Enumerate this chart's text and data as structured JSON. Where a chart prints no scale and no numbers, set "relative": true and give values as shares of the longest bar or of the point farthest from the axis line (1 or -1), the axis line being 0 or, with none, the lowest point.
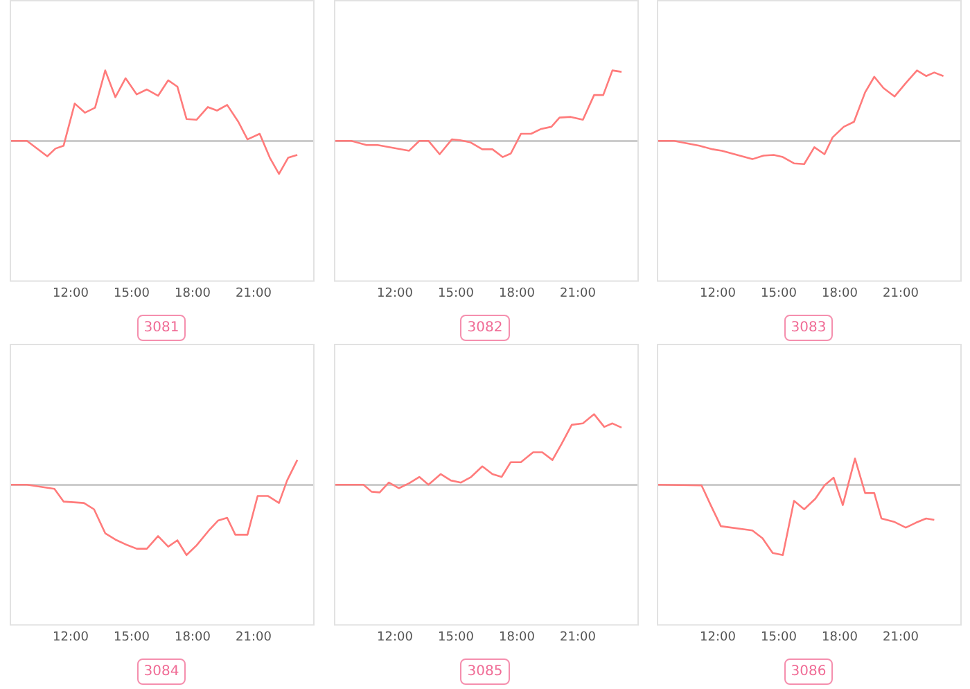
{
  "chart_data": [
    {
      "type": "line",
      "title": "3081",
      "relative": true,
      "color": "#ff7b7b",
      "xlim": [
        9,
        24
      ],
      "xticks": [
        {
          "value": 12,
          "label": "12:00"
        },
        {
          "value": 15,
          "label": "15:00"
        },
        {
          "value": 18,
          "label": "18:00"
        },
        {
          "value": 21,
          "label": "21:00"
        }
      ],
      "x": [
        9,
        9.85,
        10.85,
        11.25,
        11.65,
        12.2,
        12.7,
        13.2,
        13.7,
        14.2,
        14.7,
        15.25,
        15.75,
        16.3,
        16.8,
        17.25,
        17.7,
        18.2,
        18.75,
        19.2,
        19.7,
        20.25,
        20.7,
        21.3,
        21.8,
        22.25,
        22.7,
        23.15
      ],
      "values": [
        0,
        0,
        -0.22,
        -0.11,
        -0.07,
        0.53,
        0.4,
        0.47,
        1,
        0.62,
        0.89,
        0.66,
        0.73,
        0.64,
        0.86,
        0.77,
        0.31,
        0.3,
        0.48,
        0.43,
        0.51,
        0.27,
        0.02,
        0.1,
        -0.24,
        -0.47,
        -0.24,
        -0.2
      ]
    },
    {
      "type": "line",
      "title": "3082",
      "relative": true,
      "color": "#ff7b7b",
      "xlim": [
        9,
        24
      ],
      "xticks": [
        {
          "value": 12,
          "label": "12:00"
        },
        {
          "value": 15,
          "label": "15:00"
        },
        {
          "value": 18,
          "label": "18:00"
        },
        {
          "value": 21,
          "label": "21:00"
        }
      ],
      "x": [
        9,
        9.85,
        10.6,
        11.15,
        12.7,
        13.2,
        13.65,
        14.2,
        14.8,
        15.2,
        15.7,
        16.3,
        16.8,
        17.3,
        17.7,
        18.2,
        18.7,
        19.2,
        19.7,
        20.1,
        20.65,
        21.25,
        21.8,
        22.25,
        22.7,
        23.15
      ],
      "values": [
        0,
        0,
        -0.06,
        -0.06,
        -0.14,
        0,
        0,
        -0.19,
        0.02,
        0.01,
        -0.02,
        -0.12,
        -0.12,
        -0.23,
        -0.18,
        0.1,
        0.1,
        0.17,
        0.2,
        0.33,
        0.34,
        0.3,
        0.65,
        0.65,
        1,
        0.98
      ]
    },
    {
      "type": "line",
      "title": "3083",
      "relative": true,
      "color": "#ff7b7b",
      "xlim": [
        9,
        24
      ],
      "xticks": [
        {
          "value": 12,
          "label": "12:00"
        },
        {
          "value": 15,
          "label": "15:00"
        },
        {
          "value": 18,
          "label": "18:00"
        },
        {
          "value": 21,
          "label": "21:00"
        }
      ],
      "x": [
        9,
        9.85,
        11.1,
        11.75,
        12.2,
        13.7,
        14.25,
        14.75,
        15.2,
        15.75,
        16.25,
        16.75,
        17.25,
        17.65,
        18.2,
        18.7,
        19.25,
        19.7,
        20.15,
        20.7,
        21.25,
        21.8,
        22.25,
        22.65,
        23.1
      ],
      "values": [
        0,
        0,
        -0.07,
        -0.12,
        -0.14,
        -0.26,
        -0.21,
        -0.2,
        -0.23,
        -0.32,
        -0.33,
        -0.09,
        -0.19,
        0.05,
        0.2,
        0.27,
        0.69,
        0.91,
        0.75,
        0.63,
        0.82,
        1,
        0.92,
        0.97,
        0.92
      ]
    },
    {
      "type": "line",
      "title": "3084",
      "relative": true,
      "color": "#ff7b7b",
      "xlim": [
        9,
        24
      ],
      "xticks": [
        {
          "value": 12,
          "label": "12:00"
        },
        {
          "value": 15,
          "label": "15:00"
        },
        {
          "value": 18,
          "label": "18:00"
        },
        {
          "value": 21,
          "label": "21:00"
        }
      ],
      "x": [
        9,
        9.85,
        11.2,
        11.65,
        12.65,
        13.15,
        13.7,
        14.2,
        14.8,
        15.25,
        15.75,
        16.3,
        16.8,
        17.25,
        17.7,
        18.2,
        18.8,
        19.25,
        19.7,
        20.1,
        20.7,
        21.2,
        21.7,
        22.25,
        22.65,
        23.15
      ],
      "values": [
        0,
        0,
        -0.06,
        -0.24,
        -0.26,
        -0.35,
        -0.69,
        -0.78,
        -0.86,
        -0.91,
        -0.91,
        -0.73,
        -0.88,
        -0.79,
        -1,
        -0.86,
        -0.65,
        -0.51,
        -0.47,
        -0.71,
        -0.71,
        -0.16,
        -0.16,
        -0.26,
        0.06,
        0.35
      ]
    },
    {
      "type": "line",
      "title": "3085",
      "relative": true,
      "color": "#ff7b7b",
      "xlim": [
        9,
        24
      ],
      "xticks": [
        {
          "value": 12,
          "label": "12:00"
        },
        {
          "value": 15,
          "label": "15:00"
        },
        {
          "value": 18,
          "label": "18:00"
        },
        {
          "value": 21,
          "label": "21:00"
        }
      ],
      "x": [
        9,
        10.45,
        10.85,
        11.25,
        11.7,
        12.2,
        12.7,
        13.2,
        13.65,
        14.25,
        14.75,
        15.25,
        15.75,
        16.3,
        16.8,
        17.25,
        17.7,
        18.2,
        18.8,
        19.25,
        19.75,
        20.2,
        20.7,
        21.25,
        21.8,
        22.3,
        22.7,
        23.15
      ],
      "values": [
        0,
        0,
        -0.1,
        -0.11,
        0.03,
        -0.05,
        0.02,
        0.11,
        0,
        0.15,
        0.06,
        0.03,
        0.11,
        0.26,
        0.15,
        0.11,
        0.32,
        0.32,
        0.46,
        0.46,
        0.35,
        0.58,
        0.85,
        0.87,
        1,
        0.82,
        0.87,
        0.81
      ]
    },
    {
      "type": "line",
      "title": "3086",
      "relative": true,
      "color": "#ff7b7b",
      "xlim": [
        9,
        24
      ],
      "xticks": [
        {
          "value": 12,
          "label": "12:00"
        },
        {
          "value": 15,
          "label": "15:00"
        },
        {
          "value": 18,
          "label": "18:00"
        },
        {
          "value": 21,
          "label": "21:00"
        }
      ],
      "x": [
        9,
        11.2,
        11.65,
        12.15,
        13.7,
        14.2,
        14.7,
        15.2,
        15.75,
        16.25,
        16.8,
        17.25,
        17.7,
        18.15,
        18.75,
        19.25,
        19.7,
        20.05,
        20.7,
        21.25,
        21.75,
        22.25,
        22.65
      ],
      "values": [
        0,
        -0.01,
        -0.29,
        -0.59,
        -0.65,
        -0.76,
        -0.97,
        -1,
        -0.23,
        -0.35,
        -0.2,
        -0.01,
        0.1,
        -0.29,
        0.37,
        -0.12,
        -0.12,
        -0.48,
        -0.53,
        -0.61,
        -0.54,
        -0.48,
        -0.5
      ]
    }
  ]
}
